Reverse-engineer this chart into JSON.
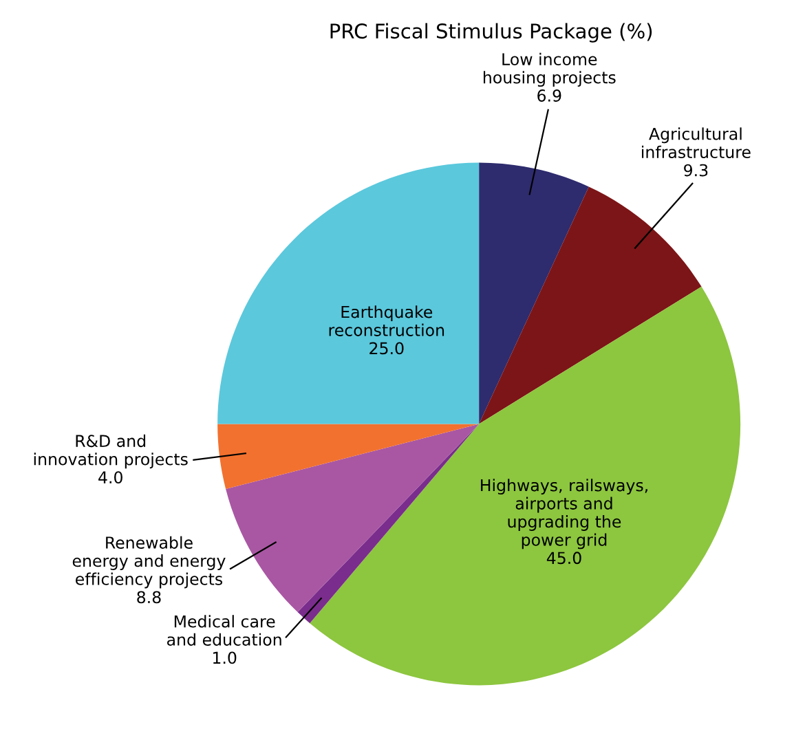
{
  "chart_data": {
    "type": "pie",
    "title": "PRC Fiscal Stimulus Package (%)",
    "categories": [
      "Low income\nhousing projects",
      "Agricultural\ninfrastructure",
      "Highways, railsways,\nairports and\nupgrading the\npower grid",
      "Medical care\nand education",
      "Renewable\nenergy and energy\nefficiency projects",
      "R&D and\ninnovation projects",
      "Earthquake\nreconstruction"
    ],
    "values": [
      6.9,
      9.3,
      45.0,
      1.0,
      8.8,
      4.0,
      25.0
    ],
    "value_labels": [
      "6.9",
      "9.3",
      "45.0",
      "1.0",
      "8.8",
      "4.0",
      "25.0"
    ],
    "colors": [
      "#2e2b6e",
      "#7c1517",
      "#8dc63f",
      "#7a2d8c",
      "#a957a3",
      "#f2712f",
      "#5bc8dc"
    ]
  }
}
